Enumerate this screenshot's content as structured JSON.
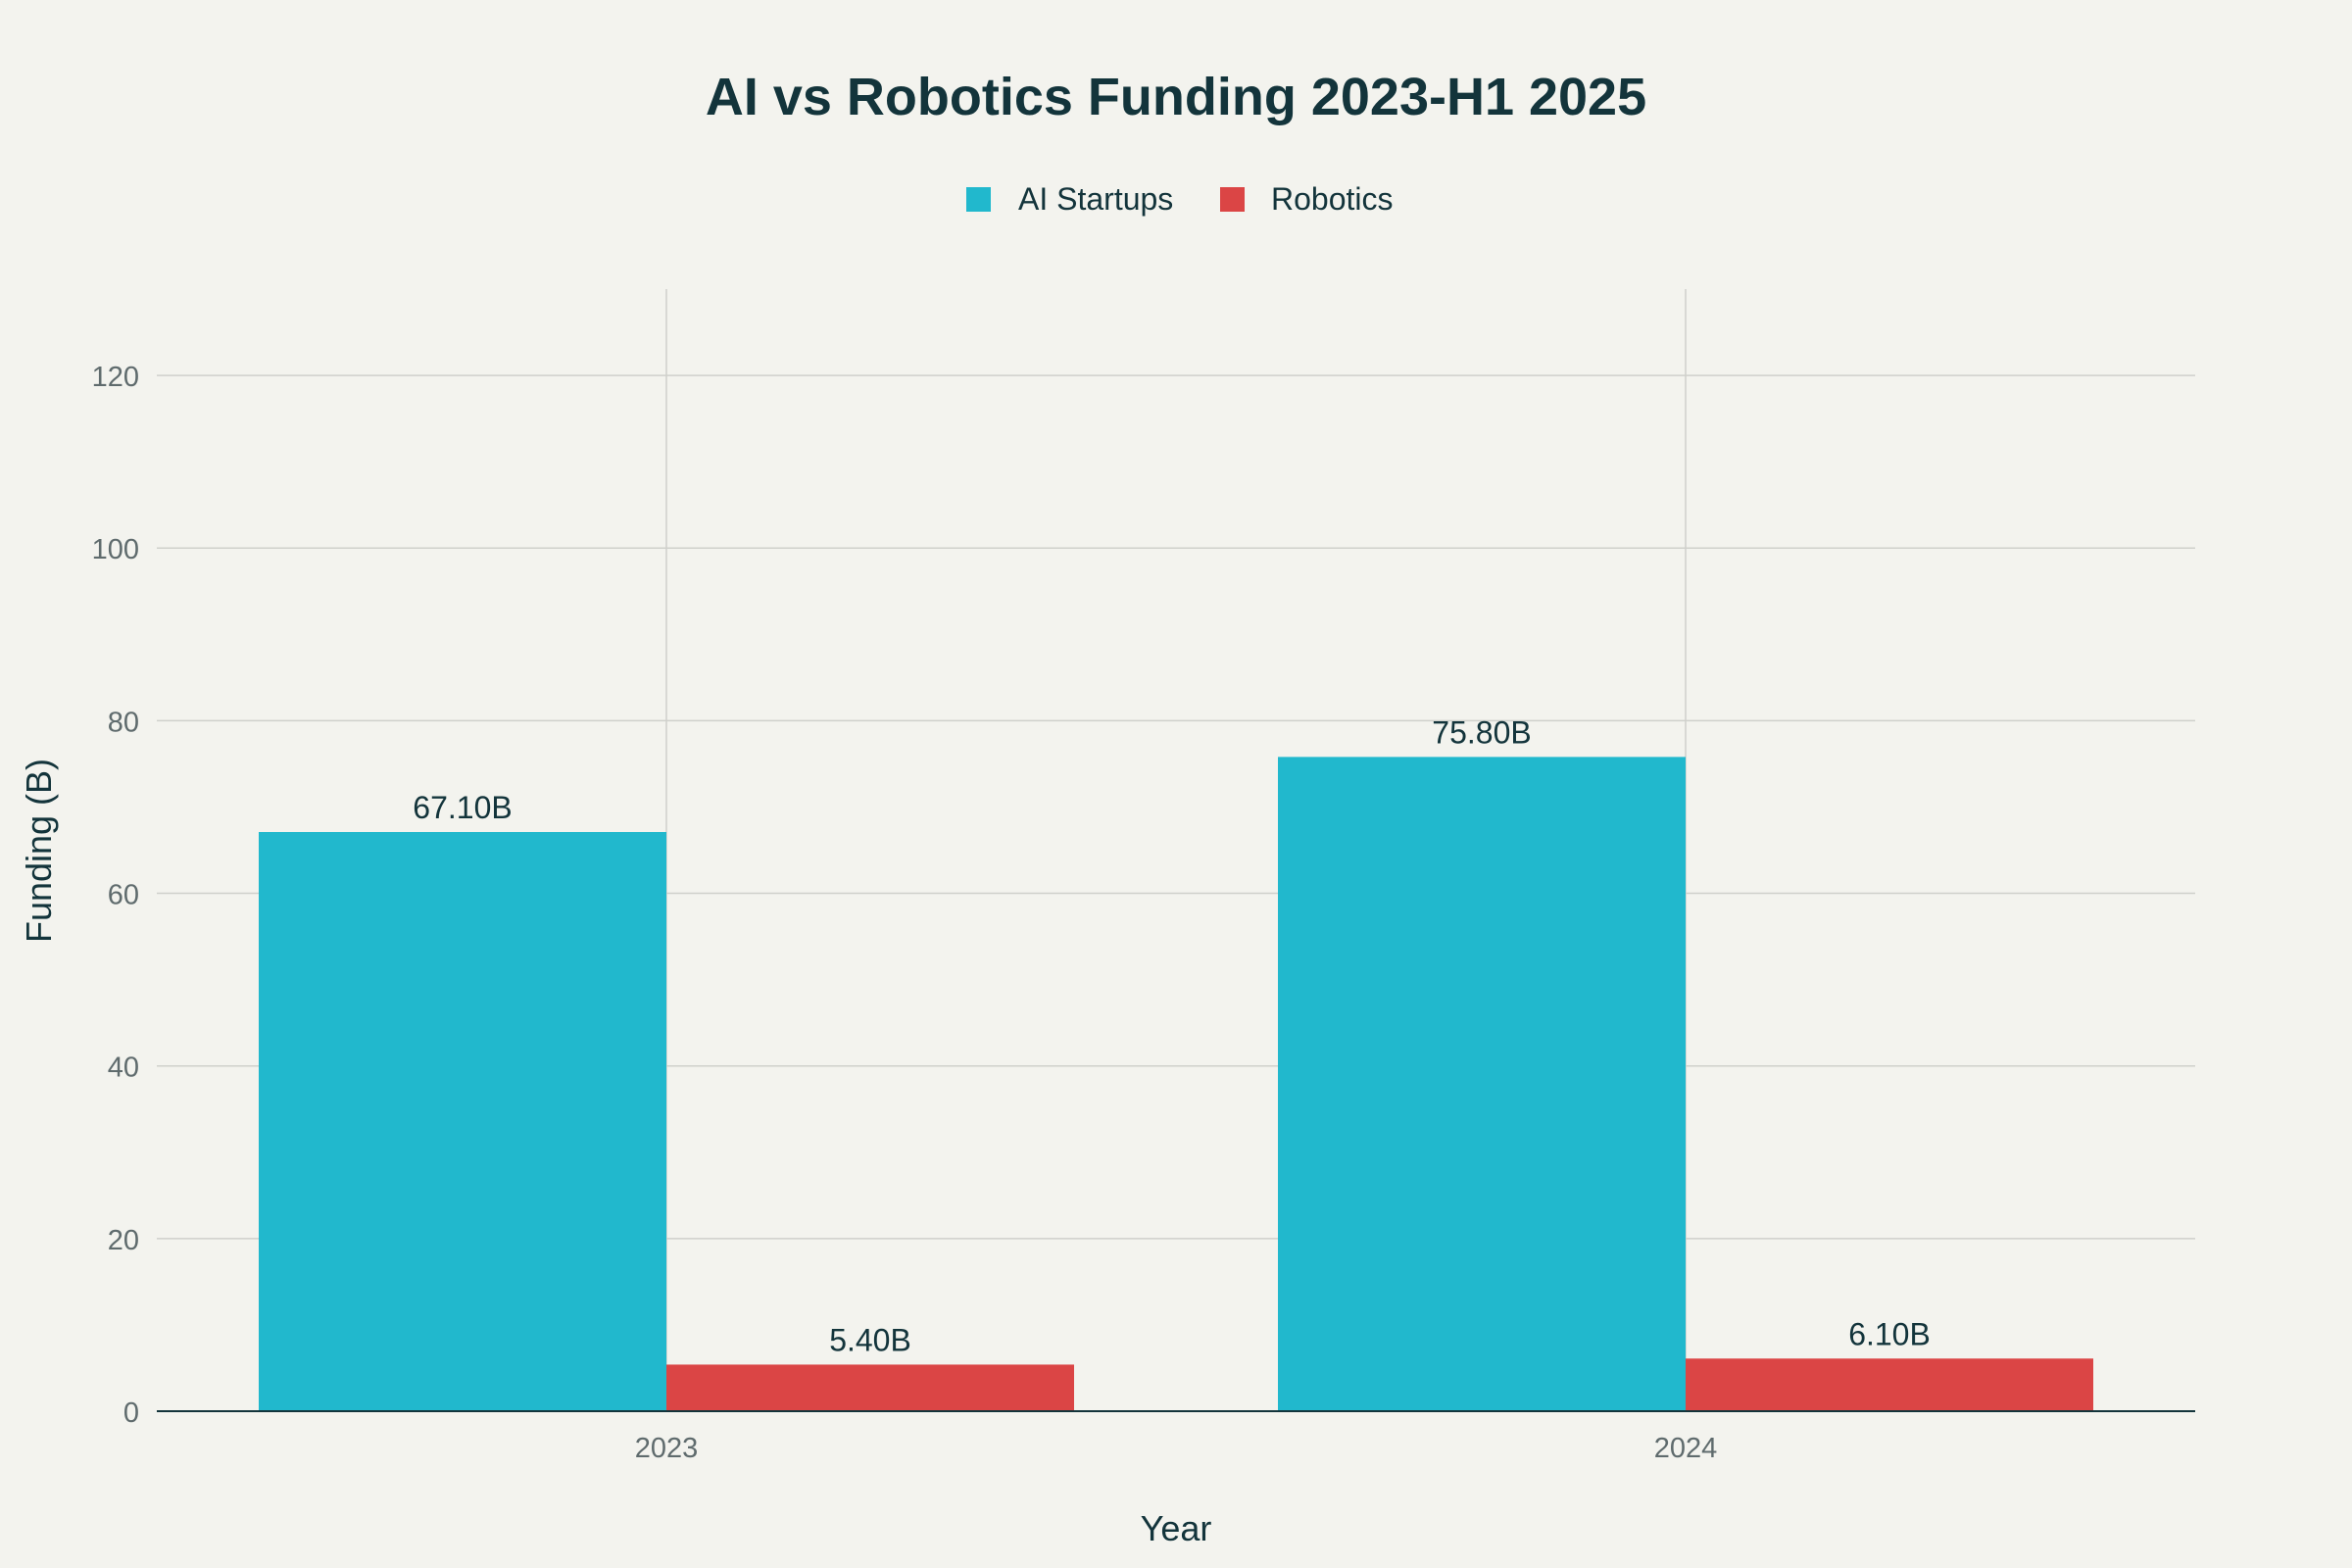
{
  "chart_data": {
    "type": "bar",
    "title": "AI vs Robotics Funding 2023-H1 2025",
    "xlabel": "Year",
    "ylabel": "Funding (B)",
    "categories": [
      "2023",
      "2024"
    ],
    "series": [
      {
        "name": "AI Startups",
        "color": "#21b8cd",
        "values": [
          67.1,
          75.8
        ],
        "labels": [
          "67.10B",
          "75.80B"
        ]
      },
      {
        "name": "Robotics",
        "color": "#db4545",
        "values": [
          5.4,
          6.1
        ],
        "labels": [
          "5.40B",
          "6.10B"
        ]
      }
    ],
    "ylim": [
      0,
      130
    ],
    "yticks": [
      0,
      20,
      40,
      60,
      80,
      100,
      120
    ],
    "grid": true,
    "legend_position": "top-center"
  },
  "colors": {
    "background": "#f3f3ee",
    "text": "#13343b",
    "tick_text": "#5f6b6d",
    "grid": "#cfd0cb",
    "axis": "#13343b"
  }
}
